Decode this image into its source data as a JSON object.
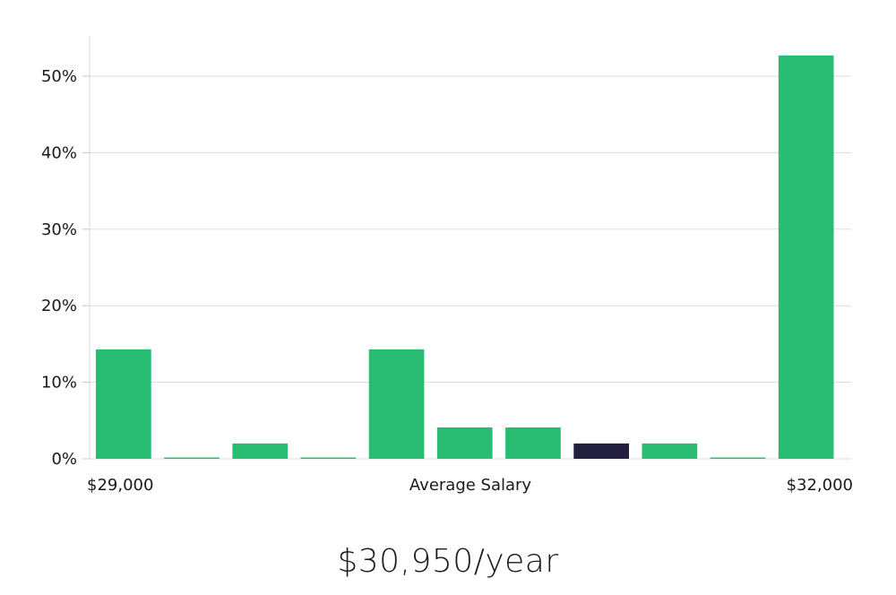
{
  "chart_data": {
    "type": "bar",
    "bins": [
      "1",
      "2",
      "3",
      "4",
      "5",
      "6",
      "7",
      "8",
      "9",
      "10",
      "11"
    ],
    "values": [
      14.3,
      0,
      2.0,
      0,
      14.3,
      4.1,
      4.1,
      2.0,
      2.0,
      0,
      52.7
    ],
    "highlight_index": 7,
    "y_ticks": [
      "0%",
      "10%",
      "20%",
      "30%",
      "40%",
      "50%"
    ],
    "y_tick_values": [
      0,
      10,
      20,
      30,
      40,
      50
    ],
    "ylim": [
      0,
      55
    ],
    "xlabel": "Average Salary",
    "x_min_label": "$29,000",
    "x_max_label": "$32,000",
    "grid": true,
    "bar_color": "#28bd73",
    "highlight_color": "#23203f"
  },
  "headline": "$30,950/year"
}
